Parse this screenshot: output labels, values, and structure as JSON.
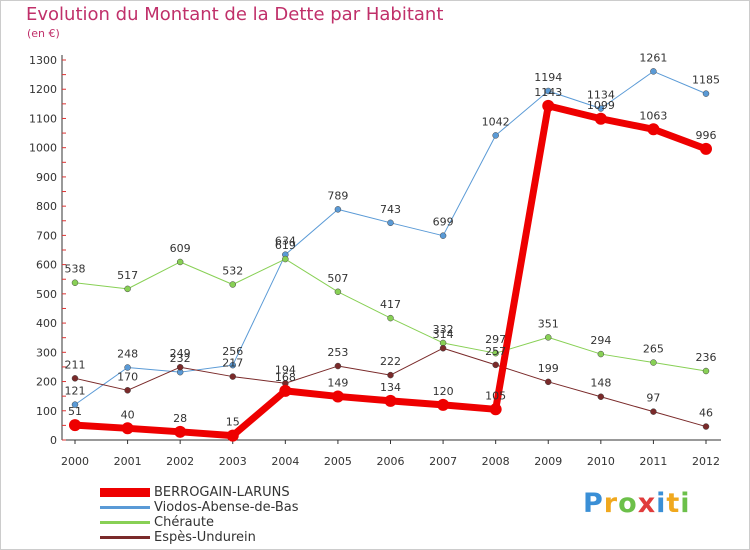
{
  "title": "Evolution du Montant de la Dette par Habitant",
  "unit": "(en €)",
  "logo": {
    "text": "Proxiti",
    "letters": [
      {
        "ch": "P",
        "color": "#3a8fd6"
      },
      {
        "ch": "r",
        "color": "#f0a81e"
      },
      {
        "ch": "o",
        "color": "#6cc04a"
      },
      {
        "ch": "x",
        "color": "#e03c3c"
      },
      {
        "ch": "i",
        "color": "#3a8fd6"
      },
      {
        "ch": "t",
        "color": "#f0a81e"
      },
      {
        "ch": "i",
        "color": "#6cc04a"
      }
    ]
  },
  "chart_data": {
    "type": "line",
    "title": "Evolution du Montant de la Dette par Habitant",
    "subtitle": "(en €)",
    "x": [
      2000,
      2001,
      2002,
      2003,
      2004,
      2005,
      2006,
      2007,
      2008,
      2009,
      2010,
      2011,
      2012
    ],
    "yticks": [
      0,
      100,
      200,
      300,
      400,
      500,
      600,
      700,
      800,
      900,
      1000,
      1100,
      1200,
      1300
    ],
    "ylim": [
      0,
      1300
    ],
    "grid": false,
    "legend_position": "bottom-left",
    "series": [
      {
        "name": "BERROGAIN-LARUNS",
        "color": "#ee0000",
        "width": 7,
        "radius": 6,
        "values": [
          51,
          40,
          28,
          15,
          168,
          149,
          134,
          120,
          105,
          1143,
          1099,
          1063,
          996
        ],
        "labels": [
          "51",
          "40",
          "28",
          "15",
          "168",
          "149",
          "134",
          "120",
          "105",
          "1143",
          "1099",
          "1063",
          "996"
        ]
      },
      {
        "name": "Viodos-Abense-de-Bas",
        "color": "#5a9ad6",
        "width": 1,
        "radius": 3,
        "values": [
          121,
          248,
          232,
          256,
          634,
          789,
          743,
          699,
          1042,
          1194,
          1134,
          1261,
          1185
        ],
        "labels": [
          "121",
          "248",
          "232",
          "256",
          "634",
          "789",
          "743",
          "699",
          "1042",
          "1194",
          "1134",
          "1261",
          "1185"
        ]
      },
      {
        "name": "Chéraute",
        "color": "#88d055",
        "width": 1,
        "radius": 3,
        "values": [
          538,
          517,
          609,
          532,
          619,
          507,
          417,
          332,
          297,
          351,
          294,
          265,
          236
        ],
        "labels": [
          "538",
          "517",
          "609",
          "532",
          "619",
          "507",
          "417",
          "332",
          "297",
          "351",
          "294",
          "265",
          "236"
        ]
      },
      {
        "name": "Espès-Undurein",
        "color": "#7a2a2a",
        "width": 1,
        "radius": 3,
        "values": [
          211,
          170,
          249,
          217,
          194,
          253,
          222,
          314,
          257,
          199,
          148,
          97,
          46
        ],
        "labels": [
          "211",
          "170",
          "249",
          "217",
          "194",
          "253",
          "222",
          "314",
          "257",
          "199",
          "148",
          "97",
          "46"
        ]
      }
    ]
  }
}
